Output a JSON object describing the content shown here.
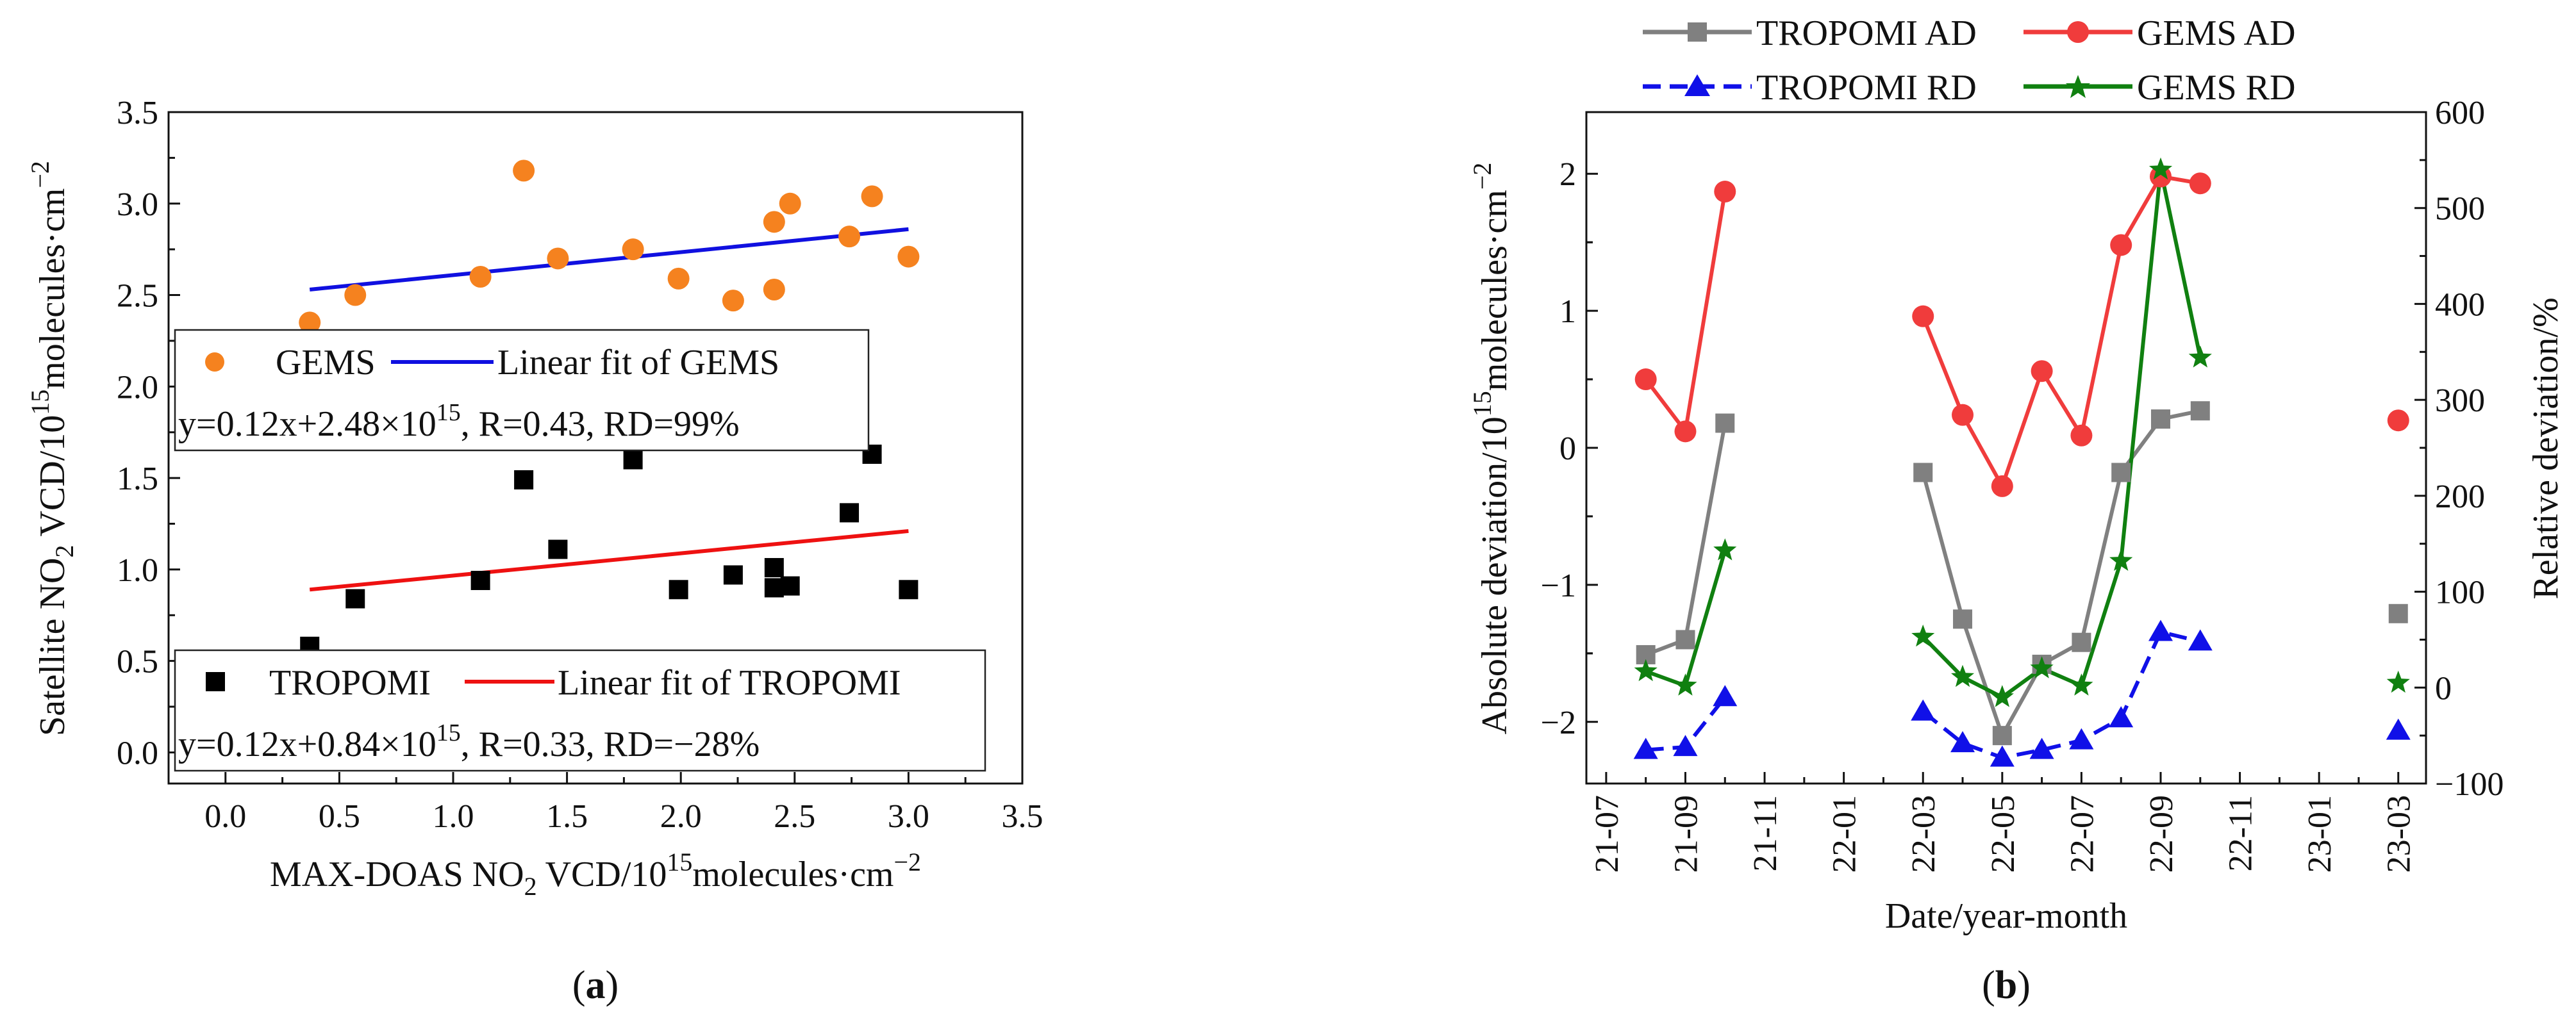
{
  "colors": {
    "gems": "#f5821f",
    "gems_fit": "#1010e0",
    "tropomi": "#000000",
    "tropomi_fit": "#ee1111",
    "tropomi_ad": "#808080",
    "gems_ad": "#f03c3c",
    "tropomi_rd": "#1010e8",
    "gems_rd": "#108010"
  },
  "chart_data": [
    {
      "id": "a",
      "type": "scatter",
      "panel_label": "a",
      "xlabel": {
        "pre": "MAX-DOAS NO",
        "sub": "2",
        "mid": " VCD/10",
        "sup": "15",
        "post": "molecules·cm",
        "sup2": "−2"
      },
      "ylabel": {
        "pre": "Satellite NO",
        "sub": "2",
        "mid": " VCD/10",
        "sup": "15",
        "post": "molecules·cm",
        "sup2": "−2"
      },
      "xlim": [
        -0.25,
        3.5
      ],
      "ylim": [
        -0.17,
        3.5
      ],
      "xticks": [
        0.0,
        0.5,
        1.0,
        1.5,
        2.0,
        2.5,
        3.0,
        3.5
      ],
      "xtick_labels": [
        "0.0",
        "0.5",
        "1.0",
        "1.5",
        "2.0",
        "2.5",
        "3.0",
        "3.5"
      ],
      "yticks": [
        0.0,
        0.5,
        1.0,
        1.5,
        2.0,
        2.5,
        3.0,
        3.5
      ],
      "ytick_labels": [
        "0.0",
        "0.5",
        "1.0",
        "1.5",
        "2.0",
        "2.5",
        "3.0",
        "3.5"
      ],
      "series": [
        {
          "name": "GEMS",
          "marker": "circle",
          "x": [
            0.37,
            0.57,
            1.12,
            1.31,
            1.46,
            1.79,
            1.99,
            2.23,
            2.41,
            2.41,
            2.48,
            2.74,
            2.84,
            3.0
          ],
          "y": [
            2.35,
            2.5,
            2.6,
            3.18,
            2.7,
            2.75,
            2.59,
            2.47,
            2.53,
            2.9,
            3.0,
            2.82,
            3.04,
            2.71
          ]
        },
        {
          "name": "TROPOMI",
          "marker": "square",
          "x": [
            0.37,
            0.57,
            1.12,
            1.31,
            1.46,
            1.79,
            1.99,
            2.23,
            2.41,
            2.41,
            2.48,
            2.74,
            2.84,
            3.0
          ],
          "y": [
            0.58,
            0.84,
            0.94,
            1.49,
            1.11,
            1.6,
            0.89,
            0.97,
            1.01,
            0.9,
            0.91,
            1.31,
            1.63,
            0.89
          ]
        }
      ],
      "fits": [
        {
          "name": "Linear fit of GEMS",
          "x": [
            0.37,
            3.0
          ],
          "y": [
            2.53,
            2.86
          ]
        },
        {
          "name": "Linear fit of TROPOMI",
          "x": [
            0.37,
            3.0
          ],
          "y": [
            0.89,
            1.21
          ]
        }
      ],
      "legend_gems": {
        "label": "GEMS",
        "fit_label": "Linear fit of GEMS",
        "eq_pre": "y=0.12x+2.48×10",
        "eq_sup": "15",
        "eq_post": ", R=0.43, RD=99%"
      },
      "legend_tropomi": {
        "label": "TROPOMI",
        "fit_label": "Linear fit of TROPOMI",
        "eq_pre": "y=0.12x+0.84×10",
        "eq_sup": "15",
        "eq_post": ", R=0.33, RD=−28%"
      }
    },
    {
      "id": "b",
      "type": "line",
      "panel_label": "b",
      "xlabel": "Date/year-month",
      "ylabel_left": {
        "pre": "Absolute deviation/10",
        "sup": "15",
        "post": "molecules·cm",
        "sup2": "−2"
      },
      "ylabel_right": "Relative deviation/%",
      "x_range_months": [
        -0.5,
        20.7
      ],
      "xticks_month_index": [
        0,
        2,
        4,
        6,
        8,
        10,
        12,
        14,
        16,
        18,
        20
      ],
      "xtick_labels": [
        "21-07",
        "21-09",
        "21-11",
        "22-01",
        "22-03",
        "22-05",
        "22-07",
        "22-09",
        "22-11",
        "23-01",
        "23-03"
      ],
      "ylim_left": [
        -2.45,
        2.45
      ],
      "ylim_right": [
        -100,
        600
      ],
      "yticks_left": [
        -2,
        -1,
        0,
        1,
        2
      ],
      "ytick_labels_left": [
        "−2",
        "−1",
        "0",
        "1",
        "2"
      ],
      "yticks_right": [
        -100,
        0,
        100,
        200,
        300,
        400,
        500,
        600
      ],
      "ytick_labels_right": [
        "−100",
        "0",
        "100",
        "200",
        "300",
        "400",
        "500",
        "600"
      ],
      "legend": [
        "TROPOMI AD",
        "GEMS AD",
        "TROPOMI RD",
        "GEMS RD"
      ],
      "series": [
        {
          "name": "TROPOMI AD",
          "axis": "left",
          "marker": "square",
          "segments": [
            {
              "x": [
                1,
                2,
                3
              ],
              "y": [
                -1.51,
                -1.4,
                0.18
              ]
            },
            {
              "x": [
                8,
                9,
                10,
                11,
                12,
                13,
                14,
                15
              ],
              "y": [
                -0.18,
                -1.25,
                -2.1,
                -1.58,
                -1.42,
                -0.18,
                0.21,
                0.27
              ]
            },
            {
              "x": [
                20
              ],
              "y": [
                -1.21
              ]
            }
          ]
        },
        {
          "name": "GEMS AD",
          "axis": "left",
          "marker": "circle",
          "segments": [
            {
              "x": [
                1,
                2,
                3
              ],
              "y": [
                0.5,
                0.12,
                1.87
              ]
            },
            {
              "x": [
                8,
                9,
                10,
                11,
                12,
                13,
                14,
                15
              ],
              "y": [
                0.96,
                0.24,
                -0.28,
                0.56,
                0.09,
                1.48,
                1.98,
                1.93
              ]
            },
            {
              "x": [
                20
              ],
              "y": [
                0.2
              ]
            }
          ]
        },
        {
          "name": "TROPOMI RD",
          "axis": "right",
          "marker": "triangle",
          "segments": [
            {
              "x": [
                1,
                2,
                3
              ],
              "y": [
                -65,
                -62,
                -10
              ]
            },
            {
              "x": [
                8,
                9,
                10,
                11,
                12,
                13,
                14,
                15
              ],
              "y": [
                -25,
                -58,
                -73,
                -65,
                -55,
                -32,
                58,
                48
              ]
            },
            {
              "x": [
                20
              ],
              "y": [
                -45
              ]
            }
          ]
        },
        {
          "name": "GEMS RD",
          "axis": "right",
          "marker": "star",
          "segments": [
            {
              "x": [
                1,
                2,
                3
              ],
              "y": [
                17,
                2,
                143
              ]
            },
            {
              "x": [
                8,
                9,
                10,
                11,
                12,
                13,
                14,
                15
              ],
              "y": [
                53,
                11,
                -10,
                20,
                2,
                132,
                540,
                344
              ]
            },
            {
              "x": [
                20
              ],
              "y": [
                5
              ]
            }
          ]
        }
      ]
    }
  ]
}
